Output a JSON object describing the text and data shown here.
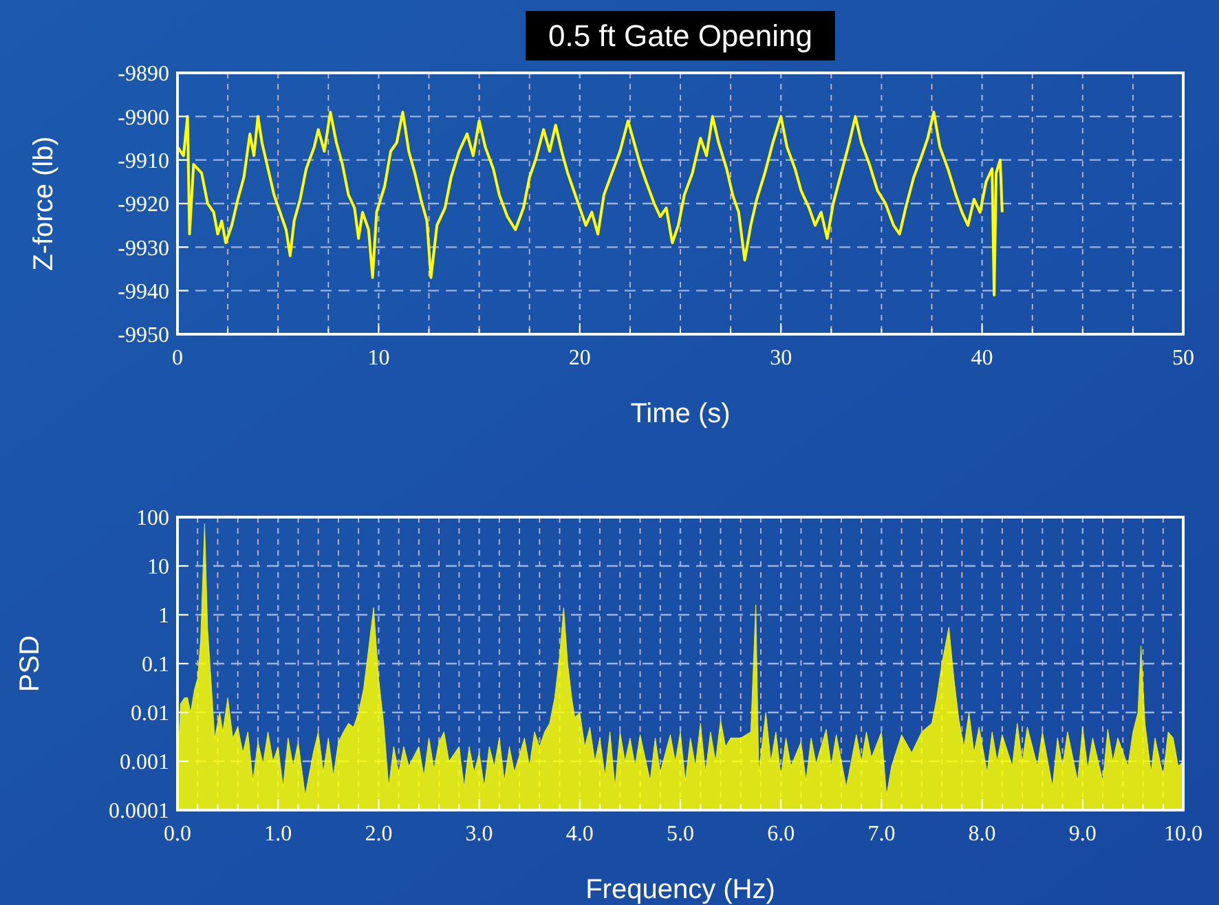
{
  "chart_data": [
    {
      "type": "line",
      "title": "0.5 ft Gate Opening",
      "xlabel": "Time (s)",
      "ylabel": "Z-force (lb)",
      "xlim": [
        0,
        50
      ],
      "ylim": [
        -9950,
        -9890
      ],
      "grid": true,
      "xticks": [
        0,
        {
          "value": 2.5,
          "label": null
        },
        {
          "value": 5,
          "label": null
        },
        {
          "value": 7.5,
          "label": null
        },
        10,
        {
          "value": 12.5,
          "label": null
        },
        {
          "value": 15,
          "label": null
        },
        {
          "value": 17.5,
          "label": null
        },
        20,
        {
          "value": 22.5,
          "label": null
        },
        {
          "value": 25,
          "label": null
        },
        {
          "value": 27.5,
          "label": null
        },
        30,
        {
          "value": 32.5,
          "label": null
        },
        {
          "value": 35,
          "label": null
        },
        {
          "value": 37.5,
          "label": null
        },
        40,
        {
          "value": 42.5,
          "label": null
        },
        {
          "value": 45,
          "label": null
        },
        {
          "value": 47.5,
          "label": null
        },
        50
      ],
      "yticks": [
        -9950,
        -9940,
        -9930,
        -9920,
        -9910,
        -9900,
        -9890
      ],
      "series": [
        {
          "color": "#ffff00",
          "x": [
            0.0,
            0.3,
            0.5,
            0.6,
            0.8,
            1.2,
            1.5,
            1.8,
            2.0,
            2.2,
            2.4,
            2.7,
            3.0,
            3.3,
            3.6,
            3.8,
            4.0,
            4.2,
            4.5,
            4.8,
            5.1,
            5.4,
            5.6,
            5.8,
            6.1,
            6.4,
            6.8,
            7.0,
            7.3,
            7.6,
            7.9,
            8.2,
            8.5,
            8.8,
            9.0,
            9.2,
            9.5,
            9.7,
            9.9,
            10.3,
            10.6,
            10.9,
            11.2,
            11.5,
            11.8,
            12.1,
            12.4,
            12.6,
            12.9,
            13.3,
            13.6,
            14.0,
            14.4,
            14.7,
            15.0,
            15.3,
            15.7,
            16.0,
            16.4,
            16.8,
            17.2,
            17.5,
            17.8,
            18.2,
            18.5,
            18.8,
            19.1,
            19.4,
            19.7,
            20.0,
            20.3,
            20.6,
            20.9,
            21.2,
            21.6,
            22.0,
            22.4,
            22.7,
            23.0,
            23.3,
            23.7,
            24.0,
            24.3,
            24.6,
            24.9,
            25.2,
            25.6,
            26.0,
            26.3,
            26.6,
            26.9,
            27.3,
            27.6,
            27.9,
            28.2,
            28.5,
            28.8,
            29.2,
            29.6,
            30.0,
            30.3,
            30.7,
            31.0,
            31.4,
            31.7,
            32.0,
            32.3,
            32.6,
            33.0,
            33.4,
            33.7,
            34.0,
            34.4,
            34.8,
            35.2,
            35.6,
            35.9,
            36.2,
            36.6,
            37.0,
            37.3,
            37.6,
            37.9,
            38.3,
            38.7,
            39.0,
            39.3,
            39.6,
            39.9,
            40.2,
            40.5,
            40.6,
            40.7,
            40.9,
            41.0
          ],
          "values": [
            -9907,
            -9909,
            -9900,
            -9927,
            -9911,
            -9913,
            -9920,
            -9922,
            -9927,
            -9924,
            -9929,
            -9925,
            -9919,
            -9914,
            -9904,
            -9909,
            -9900,
            -9906,
            -9912,
            -9918,
            -9922,
            -9926,
            -9932,
            -9924,
            -9919,
            -9912,
            -9907,
            -9903,
            -9908,
            -9899,
            -9906,
            -9911,
            -9918,
            -9921,
            -9928,
            -9922,
            -9926,
            -9937,
            -9922,
            -9916,
            -9908,
            -9906,
            -9899,
            -9908,
            -9913,
            -9919,
            -9924,
            -9937,
            -9925,
            -9921,
            -9914,
            -9908,
            -9904,
            -9909,
            -9901,
            -9907,
            -9912,
            -9918,
            -9923,
            -9926,
            -9921,
            -9914,
            -9910,
            -9903,
            -9908,
            -9902,
            -9908,
            -9913,
            -9917,
            -9921,
            -9925,
            -9922,
            -9927,
            -9918,
            -9913,
            -9908,
            -9901,
            -9906,
            -9911,
            -9915,
            -9920,
            -9923,
            -9921,
            -9929,
            -9925,
            -9918,
            -9913,
            -9905,
            -9909,
            -9900,
            -9906,
            -9912,
            -9918,
            -9922,
            -9933,
            -9925,
            -9919,
            -9913,
            -9906,
            -9900,
            -9907,
            -9912,
            -9917,
            -9921,
            -9925,
            -9922,
            -9928,
            -9920,
            -9913,
            -9906,
            -9900,
            -9906,
            -9911,
            -9917,
            -9920,
            -9925,
            -9927,
            -9921,
            -9914,
            -9909,
            -9905,
            -9899,
            -9907,
            -9912,
            -9918,
            -9922,
            -9925,
            -9919,
            -9922,
            -9915,
            -9912,
            -9941,
            -9913,
            -9910,
            -9922
          ]
        }
      ]
    },
    {
      "type": "area",
      "xlabel": "Frequency (Hz)",
      "ylabel": "PSD",
      "log": "y",
      "xlim": [
        0,
        10
      ],
      "ylim": [
        0.0001,
        100
      ],
      "grid": true,
      "xticks": [
        {
          "value": 0,
          "label": "0.0"
        },
        {
          "value": 0.2,
          "label": null
        },
        {
          "value": 0.4,
          "label": null
        },
        {
          "value": 0.6,
          "label": null
        },
        {
          "value": 0.8,
          "label": null
        },
        {
          "value": 1,
          "label": "1.0"
        },
        {
          "value": 1.2,
          "label": null
        },
        {
          "value": 1.4,
          "label": null
        },
        {
          "value": 1.6,
          "label": null
        },
        {
          "value": 1.8,
          "label": null
        },
        {
          "value": 2,
          "label": "2.0"
        },
        {
          "value": 2.2,
          "label": null
        },
        {
          "value": 2.4,
          "label": null
        },
        {
          "value": 2.6,
          "label": null
        },
        {
          "value": 2.8,
          "label": null
        },
        {
          "value": 3,
          "label": "3.0"
        },
        {
          "value": 3.2,
          "label": null
        },
        {
          "value": 3.4,
          "label": null
        },
        {
          "value": 3.6,
          "label": null
        },
        {
          "value": 3.8,
          "label": null
        },
        {
          "value": 4,
          "label": "4.0"
        },
        {
          "value": 4.2,
          "label": null
        },
        {
          "value": 4.4,
          "label": null
        },
        {
          "value": 4.6,
          "label": null
        },
        {
          "value": 4.8,
          "label": null
        },
        {
          "value": 5,
          "label": "5.0"
        },
        {
          "value": 5.2,
          "label": null
        },
        {
          "value": 5.4,
          "label": null
        },
        {
          "value": 5.6,
          "label": null
        },
        {
          "value": 5.8,
          "label": null
        },
        {
          "value": 6,
          "label": "6.0"
        },
        {
          "value": 6.2,
          "label": null
        },
        {
          "value": 6.4,
          "label": null
        },
        {
          "value": 6.6,
          "label": null
        },
        {
          "value": 6.8,
          "label": null
        },
        {
          "value": 7,
          "label": "7.0"
        },
        {
          "value": 7.2,
          "label": null
        },
        {
          "value": 7.4,
          "label": null
        },
        {
          "value": 7.6,
          "label": null
        },
        {
          "value": 7.8,
          "label": null
        },
        {
          "value": 8,
          "label": "8.0"
        },
        {
          "value": 8.2,
          "label": null
        },
        {
          "value": 8.4,
          "label": null
        },
        {
          "value": 8.6,
          "label": null
        },
        {
          "value": 8.8,
          "label": null
        },
        {
          "value": 9,
          "label": "9.0"
        },
        {
          "value": 9.2,
          "label": null
        },
        {
          "value": 9.4,
          "label": null
        },
        {
          "value": 9.6,
          "label": null
        },
        {
          "value": 9.8,
          "label": null
        },
        {
          "value": 10,
          "label": "10.0"
        }
      ],
      "yticks": [
        0.0001,
        0.001,
        0.01,
        0.1,
        1,
        10,
        100
      ],
      "series": [
        {
          "color": "#ffff00",
          "x": [
            0.0,
            0.03,
            0.07,
            0.1,
            0.13,
            0.17,
            0.2,
            0.23,
            0.27,
            0.3,
            0.33,
            0.37,
            0.42,
            0.45,
            0.5,
            0.55,
            0.6,
            0.65,
            0.7,
            0.75,
            0.8,
            0.85,
            0.9,
            0.95,
            1.0,
            1.05,
            1.1,
            1.15,
            1.2,
            1.27,
            1.35,
            1.4,
            1.45,
            1.5,
            1.55,
            1.6,
            1.65,
            1.7,
            1.75,
            1.8,
            1.85,
            1.9,
            1.95,
            2.0,
            2.05,
            2.1,
            2.15,
            2.2,
            2.25,
            2.3,
            2.4,
            2.45,
            2.5,
            2.55,
            2.6,
            2.65,
            2.7,
            2.8,
            2.85,
            2.9,
            2.95,
            3.0,
            3.05,
            3.1,
            3.15,
            3.2,
            3.25,
            3.3,
            3.35,
            3.45,
            3.5,
            3.55,
            3.6,
            3.65,
            3.7,
            3.75,
            3.8,
            3.84,
            3.88,
            3.92,
            3.95,
            4.0,
            4.05,
            4.1,
            4.15,
            4.2,
            4.25,
            4.3,
            4.35,
            4.4,
            4.45,
            4.5,
            4.55,
            4.6,
            4.7,
            4.75,
            4.8,
            4.9,
            4.95,
            5.0,
            5.05,
            5.1,
            5.15,
            5.2,
            5.25,
            5.3,
            5.35,
            5.4,
            5.45,
            5.5,
            5.55,
            5.6,
            5.7,
            5.75,
            5.78,
            5.85,
            5.9,
            5.95,
            6.0,
            6.05,
            6.1,
            6.2,
            6.25,
            6.3,
            6.35,
            6.45,
            6.5,
            6.55,
            6.65,
            6.75,
            6.8,
            6.85,
            6.9,
            7.0,
            7.05,
            7.1,
            7.2,
            7.3,
            7.4,
            7.5,
            7.55,
            7.6,
            7.67,
            7.72,
            7.77,
            7.82,
            7.87,
            7.92,
            7.97,
            8.05,
            8.1,
            8.15,
            8.2,
            8.3,
            8.35,
            8.4,
            8.45,
            8.55,
            8.6,
            8.7,
            8.75,
            8.8,
            8.85,
            8.95,
            9.0,
            9.05,
            9.1,
            9.2,
            9.25,
            9.3,
            9.35,
            9.45,
            9.5,
            9.55,
            9.58,
            9.62,
            9.68,
            9.72,
            9.8,
            9.85,
            9.9,
            9.95,
            10.0
          ],
          "values": [
            0.0005,
            0.015,
            0.02,
            0.02,
            0.01,
            0.03,
            0.05,
            0.3,
            74,
            0.5,
            0.06,
            0.003,
            0.01,
            0.004,
            0.02,
            0.003,
            0.005,
            0.0015,
            0.004,
            0.0004,
            0.0025,
            0.0009,
            0.004,
            0.001,
            0.002,
            0.0003,
            0.003,
            0.0008,
            0.0025,
            0.0002,
            0.0015,
            0.004,
            0.0006,
            0.003,
            0.0005,
            0.0025,
            0.004,
            0.006,
            0.005,
            0.01,
            0.03,
            0.2,
            1.4,
            0.05,
            0.006,
            0.0003,
            0.002,
            0.0006,
            0.002,
            0.0008,
            0.002,
            0.0005,
            0.003,
            0.0007,
            0.0025,
            0.004,
            0.001,
            0.002,
            0.0003,
            0.002,
            0.0006,
            0.0015,
            0.0003,
            0.002,
            0.0008,
            0.003,
            0.0004,
            0.002,
            0.0006,
            0.003,
            0.0008,
            0.004,
            0.002,
            0.004,
            0.006,
            0.02,
            0.15,
            1.4,
            0.1,
            0.02,
            0.008,
            0.01,
            0.002,
            0.005,
            0.001,
            0.003,
            0.0005,
            0.004,
            0.0003,
            0.004,
            0.001,
            0.003,
            0.0008,
            0.0035,
            0.0004,
            0.003,
            0.0006,
            0.0035,
            0.001,
            0.004,
            0.0004,
            0.003,
            0.0008,
            0.006,
            0.0006,
            0.004,
            0.001,
            0.007,
            0.002,
            0.003,
            0.003,
            0.003,
            0.004,
            1.6,
            0.0006,
            0.01,
            0.001,
            0.004,
            0.0005,
            0.003,
            0.0008,
            0.0025,
            0.0004,
            0.003,
            0.0009,
            0.0045,
            0.0008,
            0.0035,
            0.0003,
            0.0035,
            0.001,
            0.004,
            0.0012,
            0.004,
            0.0002,
            0.0008,
            0.0035,
            0.0015,
            0.004,
            0.006,
            0.02,
            0.1,
            0.56,
            0.05,
            0.007,
            0.002,
            0.01,
            0.0015,
            0.005,
            0.0006,
            0.004,
            0.001,
            0.0035,
            0.0008,
            0.006,
            0.001,
            0.005,
            0.0008,
            0.004,
            0.0003,
            0.003,
            0.0008,
            0.004,
            0.0004,
            0.005,
            0.0007,
            0.003,
            0.0004,
            0.0045,
            0.001,
            0.003,
            0.0008,
            0.004,
            0.01,
            0.23,
            0.006,
            0.0006,
            0.003,
            0.0005,
            0.004,
            0.003,
            0.0008,
            0.001
          ]
        }
      ]
    }
  ]
}
